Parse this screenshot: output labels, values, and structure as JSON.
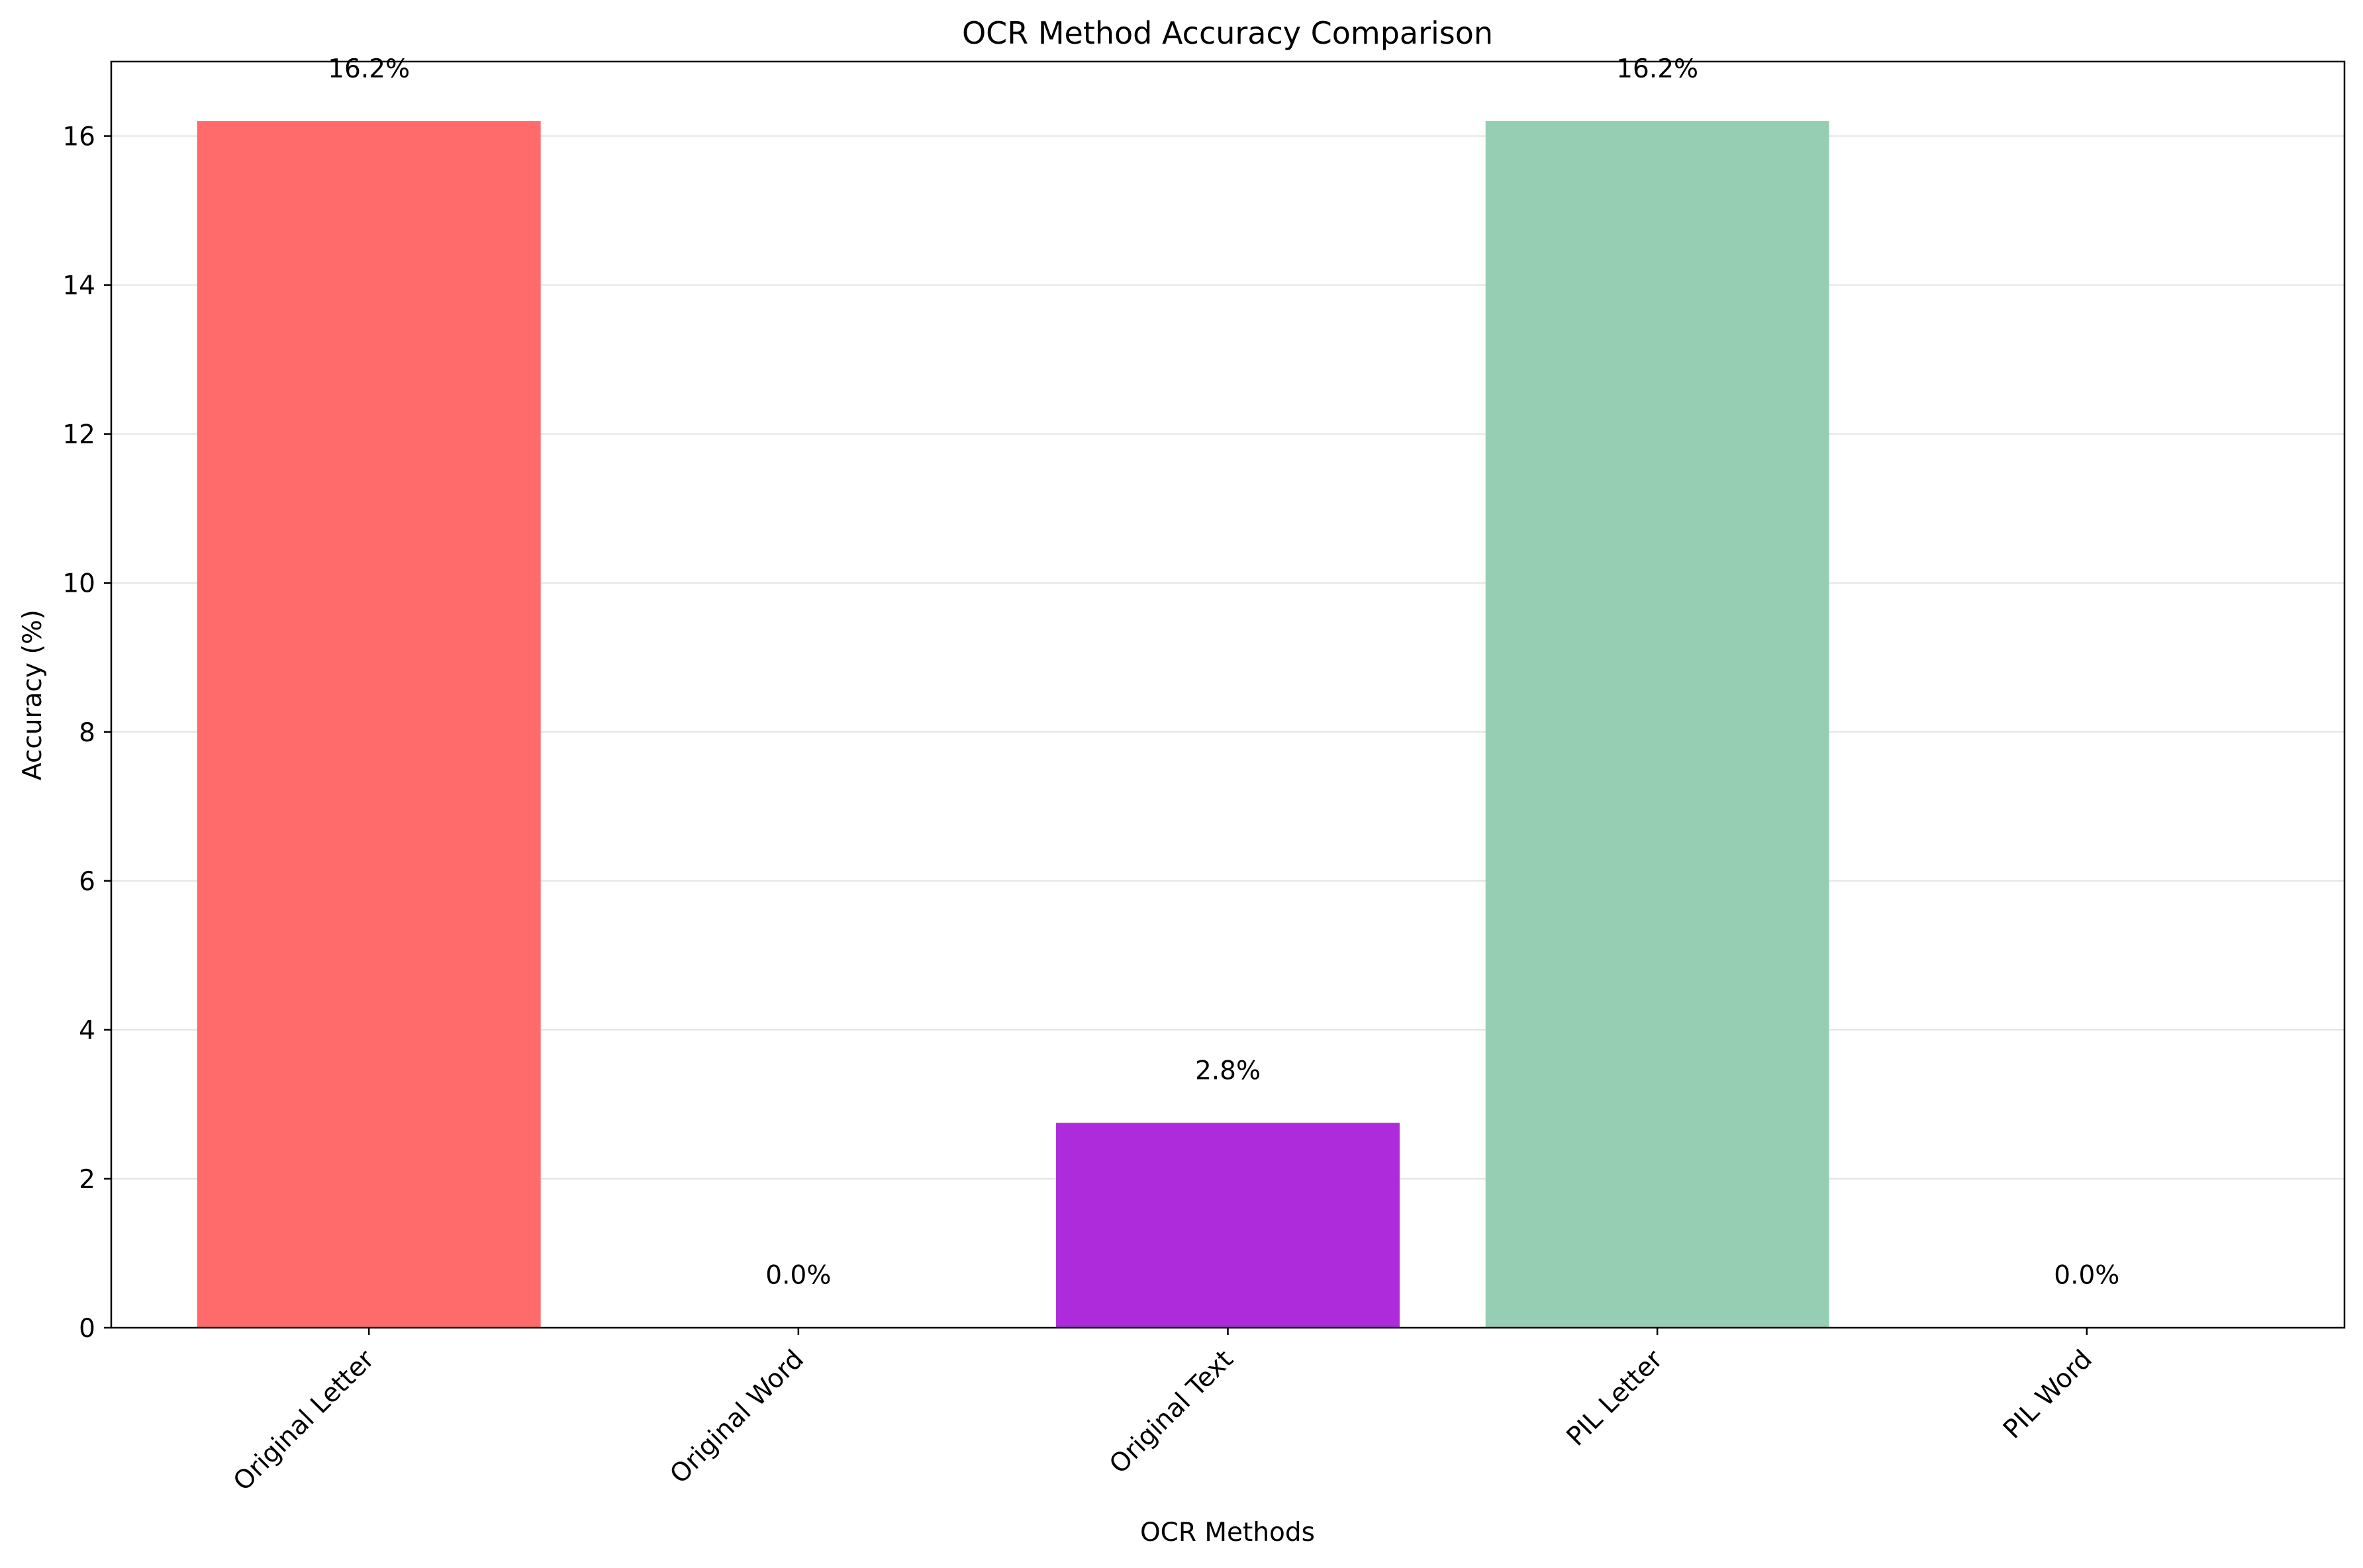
{
  "chart_data": {
    "type": "bar",
    "title": "OCR Method Accuracy Comparison",
    "xlabel": "OCR Methods",
    "ylabel": "Accuracy (%)",
    "categories": [
      "Original Letter",
      "Original Word",
      "Original Text",
      "PIL Letter",
      "PIL Word"
    ],
    "values": [
      16.2,
      0.0,
      2.75,
      16.2,
      0.0
    ],
    "data_labels": [
      "16.2%",
      "0.0%",
      "2.8%",
      "16.2%",
      "0.0%"
    ],
    "colors": [
      "#ff6b6b",
      "#4ecdc4",
      "#ad2bdb",
      "#96ceb4",
      "#feca57"
    ],
    "ylim": [
      0,
      17
    ],
    "yticks": [
      0,
      2,
      4,
      6,
      8,
      10,
      12,
      14,
      16
    ],
    "grid": "y",
    "legend": "none"
  }
}
